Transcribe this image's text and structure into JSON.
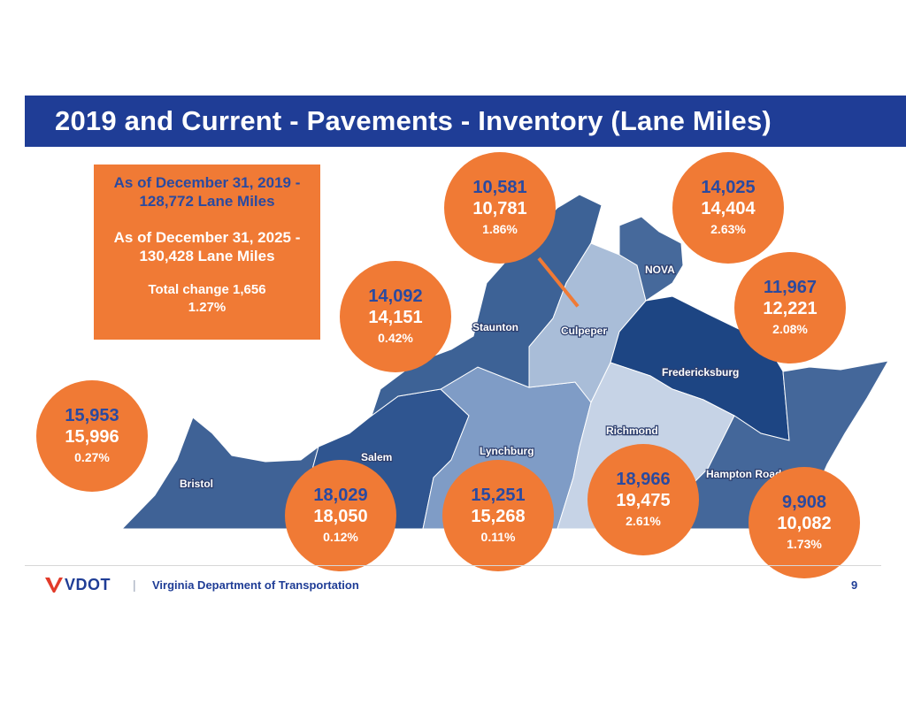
{
  "title": "2019 and Current - Pavements - Inventory (Lane Miles)",
  "summary": {
    "line1": "As of December 31, 2019 -",
    "line2": "128,772 Lane Miles",
    "line3": "As of December 31, 2025 -",
    "line4": "130,428 Lane Miles",
    "line5": "Total change 1,656",
    "line6": "1.27%"
  },
  "districts": [
    {
      "name": "Bristol",
      "value_2019": "15,953",
      "value_current": "15,996",
      "change_pct": "0.27%"
    },
    {
      "name": "Salem",
      "value_2019": "18,029",
      "value_current": "18,050",
      "change_pct": "0.12%"
    },
    {
      "name": "Lynchburg",
      "value_2019": "15,251",
      "value_current": "15,268",
      "change_pct": "0.11%"
    },
    {
      "name": "Staunton",
      "value_2019": "14,092",
      "value_current": "14,151",
      "change_pct": "0.42%"
    },
    {
      "name": "Culpeper",
      "value_2019": "10,581",
      "value_current": "10,781",
      "change_pct": "1.86%"
    },
    {
      "name": "NOVA",
      "value_2019": "14,025",
      "value_current": "14,404",
      "change_pct": "2.63%"
    },
    {
      "name": "Fredericksburg",
      "value_2019": "11,967",
      "value_current": "12,221",
      "change_pct": "2.08%"
    },
    {
      "name": "Richmond",
      "value_2019": "18,966",
      "value_current": "19,475",
      "change_pct": "2.61%"
    },
    {
      "name": "Hampton Roads",
      "value_2019": "9,908",
      "value_current": "10,082",
      "change_pct": "1.73%"
    }
  ],
  "map_colors": {
    "bristol": "#3f6296",
    "salem": "#2f5590",
    "lynchburg": "#7f9cc6",
    "staunton": "#3d6296",
    "culpeper": "#a9bdd8",
    "nova": "#46699b",
    "fredericksburg": "#1d4583",
    "richmond": "#c6d3e6",
    "hampton_roads": "#44679a"
  },
  "footer": {
    "logo_text": "VDOT",
    "separator": "|",
    "organization": "Virginia Department of Transportation",
    "page_number": "9"
  }
}
